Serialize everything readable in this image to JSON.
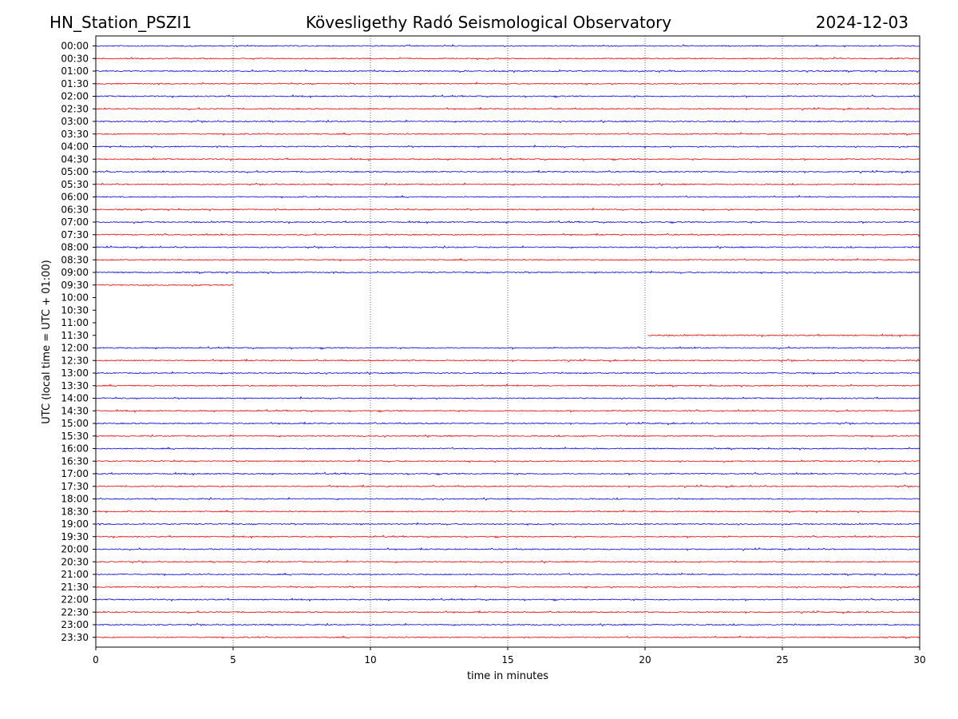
{
  "header": {
    "station": "HN_Station_PSZI1",
    "observatory": "Kövesligethy Radó Seismological Observatory",
    "date": "2024-12-03"
  },
  "chart_data": {
    "type": "line",
    "title": "Kövesligethy Radó Seismological Observatory",
    "xlabel": "time in minutes",
    "ylabel": "UTC (local time = UTC + 01:00)",
    "xlim": [
      0,
      30
    ],
    "xticks": [
      0,
      5,
      10,
      15,
      20,
      25,
      30
    ],
    "vertical_gridlines": [
      5,
      10,
      15,
      20,
      25
    ],
    "grid_style": "dotted",
    "colors": {
      "even_hour_trace": "#0000ff",
      "half_hour_trace": "#ff0000"
    },
    "rows": [
      {
        "label": "00:00",
        "start": 0,
        "end": 30
      },
      {
        "label": "00:30",
        "start": 0,
        "end": 30
      },
      {
        "label": "01:00",
        "start": 0,
        "end": 30
      },
      {
        "label": "01:30",
        "start": 0,
        "end": 30
      },
      {
        "label": "02:00",
        "start": 0,
        "end": 30
      },
      {
        "label": "02:30",
        "start": 0,
        "end": 30
      },
      {
        "label": "03:00",
        "start": 0,
        "end": 30
      },
      {
        "label": "03:30",
        "start": 0,
        "end": 30
      },
      {
        "label": "04:00",
        "start": 0,
        "end": 30
      },
      {
        "label": "04:30",
        "start": 0,
        "end": 30
      },
      {
        "label": "05:00",
        "start": 0,
        "end": 30
      },
      {
        "label": "05:30",
        "start": 0,
        "end": 30
      },
      {
        "label": "06:00",
        "start": 0,
        "end": 30
      },
      {
        "label": "06:30",
        "start": 0,
        "end": 30
      },
      {
        "label": "07:00",
        "start": 0,
        "end": 30
      },
      {
        "label": "07:30",
        "start": 0,
        "end": 30
      },
      {
        "label": "08:00",
        "start": 0,
        "end": 30
      },
      {
        "label": "08:30",
        "start": 0,
        "end": 30
      },
      {
        "label": "09:00",
        "start": 0,
        "end": 30
      },
      {
        "label": "09:30",
        "start": 0,
        "end": 5
      },
      {
        "label": "10:00",
        "start": null,
        "end": null
      },
      {
        "label": "10:30",
        "start": null,
        "end": null
      },
      {
        "label": "11:00",
        "start": null,
        "end": null
      },
      {
        "label": "11:30",
        "start": 20.1,
        "end": 30
      },
      {
        "label": "12:00",
        "start": 0,
        "end": 30
      },
      {
        "label": "12:30",
        "start": 0,
        "end": 30
      },
      {
        "label": "13:00",
        "start": 0,
        "end": 30
      },
      {
        "label": "13:30",
        "start": 0,
        "end": 30
      },
      {
        "label": "14:00",
        "start": 0,
        "end": 30
      },
      {
        "label": "14:30",
        "start": 0,
        "end": 30
      },
      {
        "label": "15:00",
        "start": 0,
        "end": 30
      },
      {
        "label": "15:30",
        "start": 0,
        "end": 30
      },
      {
        "label": "16:00",
        "start": 0,
        "end": 30
      },
      {
        "label": "16:30",
        "start": 0,
        "end": 30
      },
      {
        "label": "17:00",
        "start": 0,
        "end": 30
      },
      {
        "label": "17:30",
        "start": 0,
        "end": 30
      },
      {
        "label": "18:00",
        "start": 0,
        "end": 30
      },
      {
        "label": "18:30",
        "start": 0,
        "end": 30
      },
      {
        "label": "19:00",
        "start": 0,
        "end": 30
      },
      {
        "label": "19:30",
        "start": 0,
        "end": 30
      },
      {
        "label": "20:00",
        "start": 0,
        "end": 30
      },
      {
        "label": "20:30",
        "start": 0,
        "end": 30
      },
      {
        "label": "21:00",
        "start": 0,
        "end": 30
      },
      {
        "label": "21:30",
        "start": 0,
        "end": 30
      },
      {
        "label": "22:00",
        "start": 0,
        "end": 30
      },
      {
        "label": "22:30",
        "start": 0,
        "end": 30
      },
      {
        "label": "23:00",
        "start": 0,
        "end": 30
      },
      {
        "label": "23:30",
        "start": 0,
        "end": 30
      }
    ]
  }
}
